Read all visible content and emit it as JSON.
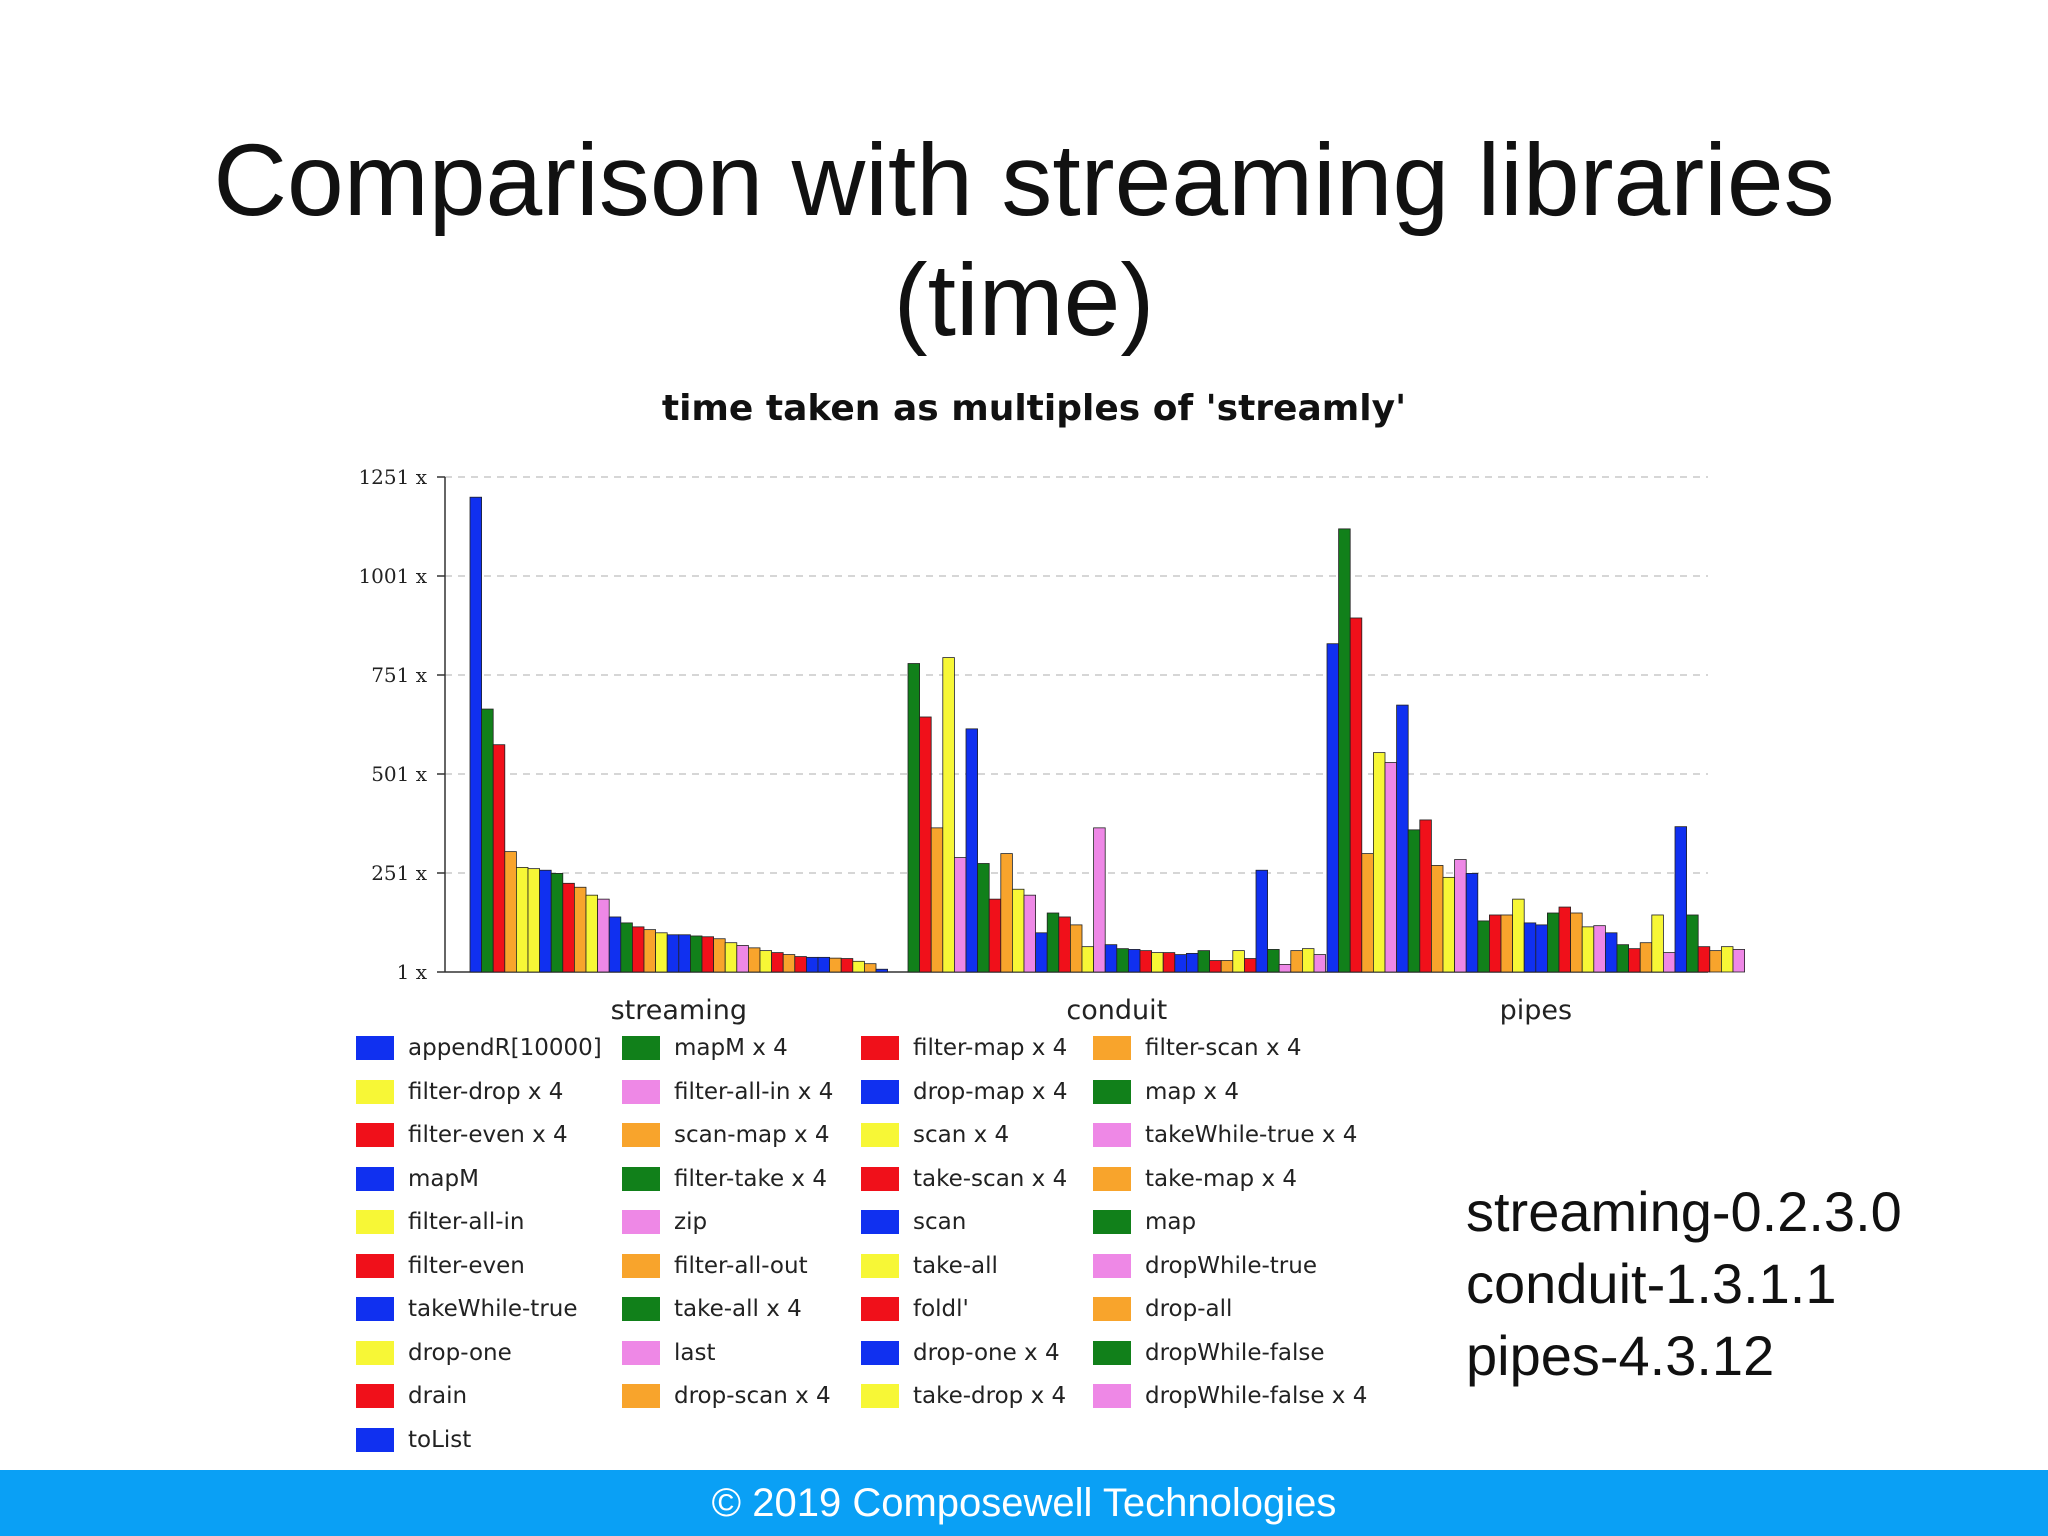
{
  "slide": {
    "title_line1": "Comparison with streaming libraries",
    "title_line2": "(time)",
    "versions": [
      "streaming-0.2.3.0",
      "conduit-1.3.1.1",
      "pipes-4.3.12"
    ],
    "footer": "© 2019 Composewell Technologies"
  },
  "colors": {
    "blue": "#1030f0",
    "green": "#11801a",
    "red": "#f0101a",
    "yellow": "#f7f736",
    "pink": "#ee88e6",
    "orange": "#f8a42c",
    "footer_bg": "#0aa0f5"
  },
  "chart_data": {
    "type": "bar",
    "title": "time taken  as multiples of 'streamly'",
    "ylim": [
      1,
      1251
    ],
    "yticks": [
      1,
      251,
      501,
      751,
      1001,
      1251
    ],
    "ytick_labels": [
      "1 x",
      "251 x",
      "501 x",
      "751 x",
      "1001 x",
      "1251 x"
    ],
    "grid": true,
    "groups": [
      {
        "name": "streaming",
        "bars": [
          {
            "color": "blue",
            "value": 1200
          },
          {
            "color": "green",
            "value": 665
          },
          {
            "color": "red",
            "value": 575
          },
          {
            "color": "orange",
            "value": 305
          },
          {
            "color": "yellow",
            "value": 265
          },
          {
            "color": "yellow",
            "value": 262
          },
          {
            "color": "blue",
            "value": 258
          },
          {
            "color": "green",
            "value": 250
          },
          {
            "color": "red",
            "value": 225
          },
          {
            "color": "orange",
            "value": 215
          },
          {
            "color": "yellow",
            "value": 195
          },
          {
            "color": "pink",
            "value": 185
          },
          {
            "color": "blue",
            "value": 140
          },
          {
            "color": "green",
            "value": 125
          },
          {
            "color": "red",
            "value": 115
          },
          {
            "color": "orange",
            "value": 108
          },
          {
            "color": "yellow",
            "value": 100
          },
          {
            "color": "blue",
            "value": 95
          },
          {
            "color": "blue",
            "value": 95
          },
          {
            "color": "green",
            "value": 92
          },
          {
            "color": "red",
            "value": 90
          },
          {
            "color": "orange",
            "value": 85
          },
          {
            "color": "yellow",
            "value": 75
          },
          {
            "color": "pink",
            "value": 68
          },
          {
            "color": "orange",
            "value": 62
          },
          {
            "color": "yellow",
            "value": 55
          },
          {
            "color": "red",
            "value": 50
          },
          {
            "color": "orange",
            "value": 45
          },
          {
            "color": "red",
            "value": 40
          },
          {
            "color": "blue",
            "value": 38
          },
          {
            "color": "blue",
            "value": 38
          },
          {
            "color": "orange",
            "value": 36
          },
          {
            "color": "red",
            "value": 35
          },
          {
            "color": "yellow",
            "value": 28
          },
          {
            "color": "orange",
            "value": 22
          },
          {
            "color": "blue",
            "value": 8
          }
        ]
      },
      {
        "name": "conduit",
        "bars": [
          {
            "color": "green",
            "value": 780
          },
          {
            "color": "red",
            "value": 645
          },
          {
            "color": "orange",
            "value": 365
          },
          {
            "color": "yellow",
            "value": 795
          },
          {
            "color": "pink",
            "value": 290
          },
          {
            "color": "blue",
            "value": 615
          },
          {
            "color": "green",
            "value": 275
          },
          {
            "color": "red",
            "value": 185
          },
          {
            "color": "orange",
            "value": 300
          },
          {
            "color": "yellow",
            "value": 210
          },
          {
            "color": "pink",
            "value": 195
          },
          {
            "color": "blue",
            "value": 100
          },
          {
            "color": "green",
            "value": 150
          },
          {
            "color": "red",
            "value": 140
          },
          {
            "color": "orange",
            "value": 120
          },
          {
            "color": "yellow",
            "value": 65
          },
          {
            "color": "pink",
            "value": 365
          },
          {
            "color": "blue",
            "value": 70
          },
          {
            "color": "green",
            "value": 60
          },
          {
            "color": "blue",
            "value": 58
          },
          {
            "color": "red",
            "value": 55
          },
          {
            "color": "yellow",
            "value": 50
          },
          {
            "color": "red",
            "value": 50
          },
          {
            "color": "blue",
            "value": 45
          },
          {
            "color": "blue",
            "value": 48
          },
          {
            "color": "green",
            "value": 55
          },
          {
            "color": "red",
            "value": 30
          },
          {
            "color": "orange",
            "value": 30
          },
          {
            "color": "yellow",
            "value": 55
          },
          {
            "color": "red",
            "value": 35
          },
          {
            "color": "blue",
            "value": 258
          },
          {
            "color": "green",
            "value": 58
          },
          {
            "color": "pink",
            "value": 20
          },
          {
            "color": "orange",
            "value": 55
          },
          {
            "color": "yellow",
            "value": 60
          },
          {
            "color": "pink",
            "value": 45
          }
        ]
      },
      {
        "name": "pipes",
        "bars": [
          {
            "color": "blue",
            "value": 830
          },
          {
            "color": "green",
            "value": 1120
          },
          {
            "color": "red",
            "value": 895
          },
          {
            "color": "orange",
            "value": 300
          },
          {
            "color": "yellow",
            "value": 555
          },
          {
            "color": "pink",
            "value": 530
          },
          {
            "color": "blue",
            "value": 675
          },
          {
            "color": "green",
            "value": 360
          },
          {
            "color": "red",
            "value": 385
          },
          {
            "color": "orange",
            "value": 270
          },
          {
            "color": "yellow",
            "value": 240
          },
          {
            "color": "pink",
            "value": 285
          },
          {
            "color": "blue",
            "value": 250
          },
          {
            "color": "green",
            "value": 130
          },
          {
            "color": "red",
            "value": 145
          },
          {
            "color": "orange",
            "value": 145
          },
          {
            "color": "yellow",
            "value": 185
          },
          {
            "color": "blue",
            "value": 125
          },
          {
            "color": "blue",
            "value": 120
          },
          {
            "color": "green",
            "value": 150
          },
          {
            "color": "red",
            "value": 165
          },
          {
            "color": "orange",
            "value": 150
          },
          {
            "color": "yellow",
            "value": 115
          },
          {
            "color": "pink",
            "value": 118
          },
          {
            "color": "blue",
            "value": 100
          },
          {
            "color": "green",
            "value": 70
          },
          {
            "color": "red",
            "value": 60
          },
          {
            "color": "orange",
            "value": 75
          },
          {
            "color": "yellow",
            "value": 145
          },
          {
            "color": "pink",
            "value": 50
          },
          {
            "color": "blue",
            "value": 368
          },
          {
            "color": "green",
            "value": 145
          },
          {
            "color": "red",
            "value": 65
          },
          {
            "color": "orange",
            "value": 55
          },
          {
            "color": "yellow",
            "value": 65
          },
          {
            "color": "pink",
            "value": 58
          }
        ]
      }
    ],
    "legend": [
      {
        "label": "appendR[10000]",
        "color": "blue"
      },
      {
        "label": "filter-drop x 4",
        "color": "yellow"
      },
      {
        "label": "filter-even x 4",
        "color": "red"
      },
      {
        "label": "mapM",
        "color": "blue"
      },
      {
        "label": "filter-all-in",
        "color": "yellow"
      },
      {
        "label": "filter-even",
        "color": "red"
      },
      {
        "label": "takeWhile-true",
        "color": "blue"
      },
      {
        "label": "drop-one",
        "color": "yellow"
      },
      {
        "label": "drain",
        "color": "red"
      },
      {
        "label": "toList",
        "color": "blue"
      },
      {
        "label": "mapM x 4",
        "color": "green"
      },
      {
        "label": "filter-all-in x 4",
        "color": "pink"
      },
      {
        "label": "scan-map x 4",
        "color": "orange"
      },
      {
        "label": "filter-take x 4",
        "color": "green"
      },
      {
        "label": "zip",
        "color": "pink"
      },
      {
        "label": "filter-all-out",
        "color": "orange"
      },
      {
        "label": "take-all x 4",
        "color": "green"
      },
      {
        "label": "last",
        "color": "pink"
      },
      {
        "label": "drop-scan x 4",
        "color": "orange"
      },
      {
        "label": "filter-map x 4",
        "color": "red"
      },
      {
        "label": "drop-map x 4",
        "color": "blue"
      },
      {
        "label": "scan x 4",
        "color": "yellow"
      },
      {
        "label": "take-scan x 4",
        "color": "red"
      },
      {
        "label": "scan",
        "color": "blue"
      },
      {
        "label": "take-all",
        "color": "yellow"
      },
      {
        "label": "foldl'",
        "color": "red"
      },
      {
        "label": "drop-one x 4",
        "color": "blue"
      },
      {
        "label": "take-drop x 4",
        "color": "yellow"
      },
      {
        "label": "filter-scan x 4",
        "color": "orange"
      },
      {
        "label": "map x 4",
        "color": "green"
      },
      {
        "label": "takeWhile-true x 4",
        "color": "pink"
      },
      {
        "label": "take-map x 4",
        "color": "orange"
      },
      {
        "label": "map",
        "color": "green"
      },
      {
        "label": "dropWhile-true",
        "color": "pink"
      },
      {
        "label": "drop-all",
        "color": "orange"
      },
      {
        "label": "dropWhile-false",
        "color": "green"
      },
      {
        "label": "dropWhile-false x 4",
        "color": "pink"
      }
    ]
  }
}
